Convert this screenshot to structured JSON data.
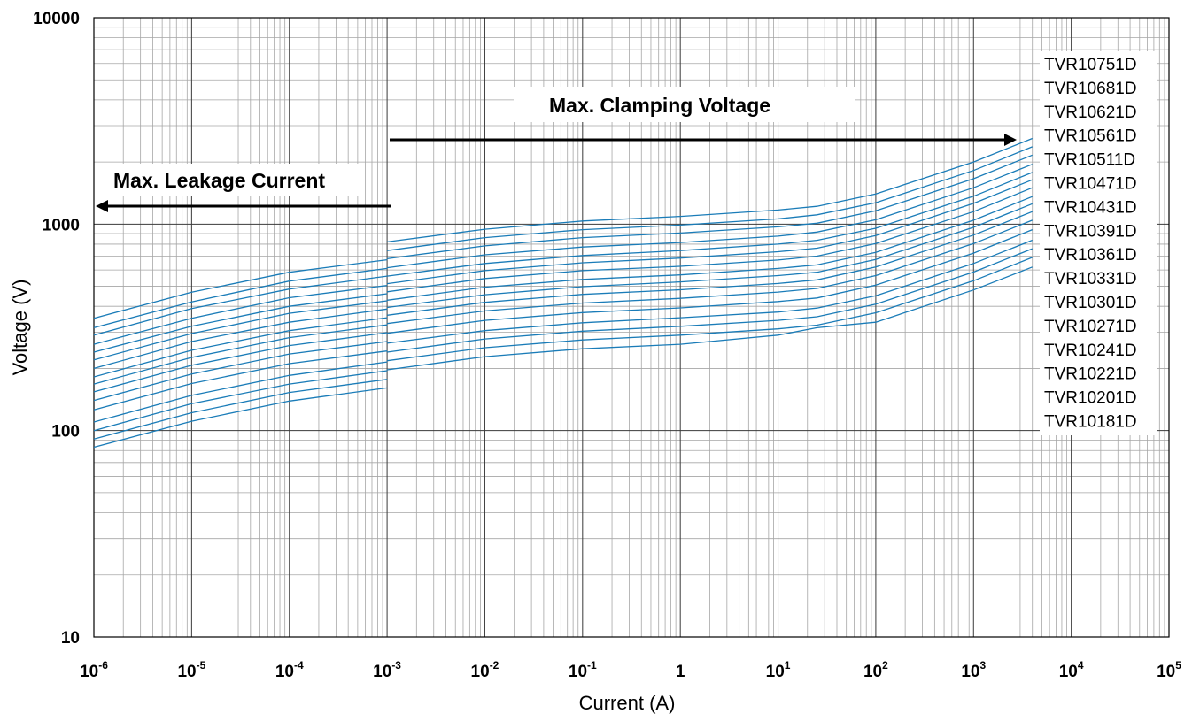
{
  "chart_data": {
    "type": "line",
    "title": "",
    "xlabel": "Current (A)",
    "ylabel": "Voltage (V)",
    "xscale": "log",
    "yscale": "log",
    "xlim": [
      1e-06,
      100000
    ],
    "ylim": [
      10,
      10000
    ],
    "grid": true,
    "x_tick_labels": [
      {
        "base": "10",
        "exp": "-6"
      },
      {
        "base": "10",
        "exp": "-5"
      },
      {
        "base": "10",
        "exp": "-4"
      },
      {
        "base": "10",
        "exp": "-3"
      },
      {
        "base": "10",
        "exp": "-2"
      },
      {
        "base": "10",
        "exp": "-1"
      },
      {
        "base": "1",
        "exp": ""
      },
      {
        "base": "10",
        "exp": "1"
      },
      {
        "base": "10",
        "exp": "2"
      },
      {
        "base": "10",
        "exp": "3"
      },
      {
        "base": "10",
        "exp": "4"
      },
      {
        "base": "10",
        "exp": "5"
      }
    ],
    "y_tick_labels": [
      "10",
      "100",
      "1000",
      "10000"
    ],
    "annotations": {
      "clamping": "Max.  Clamping  Voltage",
      "leakage": "Max. Leakage Current"
    },
    "line_color": "#1a7cb8",
    "legend_position": "right",
    "series": [
      {
        "name": "TVR10751D",
        "leakage": [
          [
            1e-06,
            350
          ],
          [
            1e-05,
            468
          ],
          [
            0.0001,
            585
          ],
          [
            0.001,
            672
          ]
        ],
        "clamping": [
          [
            0.001,
            820
          ],
          [
            0.01,
            945
          ],
          [
            0.1,
            1035
          ],
          [
            1,
            1090
          ],
          [
            10,
            1170
          ],
          [
            25,
            1220
          ],
          [
            100,
            1400
          ],
          [
            1000,
            2000
          ],
          [
            4000,
            2600
          ]
        ]
      },
      {
        "name": "TVR10681D",
        "leakage": [
          [
            1e-06,
            315
          ],
          [
            1e-05,
            420
          ],
          [
            0.0001,
            530
          ],
          [
            0.001,
            610
          ]
        ],
        "clamping": [
          [
            0.001,
            745
          ],
          [
            0.01,
            860
          ],
          [
            0.1,
            940
          ],
          [
            1,
            990
          ],
          [
            10,
            1060
          ],
          [
            25,
            1110
          ],
          [
            100,
            1270
          ],
          [
            1000,
            1820
          ],
          [
            4000,
            2370
          ]
        ]
      },
      {
        "name": "TVR10621D",
        "leakage": [
          [
            1e-06,
            290
          ],
          [
            1e-05,
            390
          ],
          [
            0.0001,
            485
          ],
          [
            0.001,
            560
          ]
        ],
        "clamping": [
          [
            0.001,
            680
          ],
          [
            0.01,
            785
          ],
          [
            0.1,
            860
          ],
          [
            1,
            905
          ],
          [
            10,
            970
          ],
          [
            25,
            1010
          ],
          [
            100,
            1160
          ],
          [
            1000,
            1660
          ],
          [
            4000,
            2160
          ]
        ]
      },
      {
        "name": "TVR10561D",
        "leakage": [
          [
            1e-06,
            262
          ],
          [
            1e-05,
            350
          ],
          [
            0.0001,
            440
          ],
          [
            0.001,
            505
          ]
        ],
        "clamping": [
          [
            0.001,
            615
          ],
          [
            0.01,
            710
          ],
          [
            0.1,
            775
          ],
          [
            1,
            815
          ],
          [
            10,
            875
          ],
          [
            25,
            915
          ],
          [
            100,
            1050
          ],
          [
            1000,
            1500
          ],
          [
            4000,
            1950
          ]
        ]
      },
      {
        "name": "TVR10511D",
        "leakage": [
          [
            1e-06,
            240
          ],
          [
            1e-05,
            320
          ],
          [
            0.0001,
            400
          ],
          [
            0.001,
            460
          ]
        ],
        "clamping": [
          [
            0.001,
            560
          ],
          [
            0.01,
            645
          ],
          [
            0.1,
            705
          ],
          [
            1,
            745
          ],
          [
            10,
            800
          ],
          [
            25,
            835
          ],
          [
            100,
            955
          ],
          [
            1000,
            1365
          ],
          [
            4000,
            1780
          ]
        ]
      },
      {
        "name": "TVR10471D",
        "leakage": [
          [
            1e-06,
            220
          ],
          [
            1e-05,
            295
          ],
          [
            0.0001,
            370
          ],
          [
            0.001,
            425
          ]
        ],
        "clamping": [
          [
            0.001,
            515
          ],
          [
            0.01,
            595
          ],
          [
            0.1,
            650
          ],
          [
            1,
            685
          ],
          [
            10,
            735
          ],
          [
            25,
            765
          ],
          [
            100,
            880
          ],
          [
            1000,
            1260
          ],
          [
            4000,
            1640
          ]
        ]
      },
      {
        "name": "TVR10431D",
        "leakage": [
          [
            1e-06,
            200
          ],
          [
            1e-05,
            270
          ],
          [
            0.0001,
            335
          ],
          [
            0.001,
            388
          ]
        ],
        "clamping": [
          [
            0.001,
            470
          ],
          [
            0.01,
            545
          ],
          [
            0.1,
            595
          ],
          [
            1,
            625
          ],
          [
            10,
            670
          ],
          [
            25,
            700
          ],
          [
            100,
            805
          ],
          [
            1000,
            1150
          ],
          [
            4000,
            1500
          ]
        ]
      },
      {
        "name": "TVR10391D",
        "leakage": [
          [
            1e-06,
            182
          ],
          [
            1e-05,
            245
          ],
          [
            0.0001,
            305
          ],
          [
            0.001,
            352
          ]
        ],
        "clamping": [
          [
            0.001,
            428
          ],
          [
            0.01,
            495
          ],
          [
            0.1,
            540
          ],
          [
            1,
            568
          ],
          [
            10,
            610
          ],
          [
            25,
            635
          ],
          [
            100,
            730
          ],
          [
            1000,
            1045
          ],
          [
            4000,
            1360
          ]
        ]
      },
      {
        "name": "TVR10361D",
        "leakage": [
          [
            1e-06,
            168
          ],
          [
            1e-05,
            226
          ],
          [
            0.0001,
            282
          ],
          [
            0.001,
            325
          ]
        ],
        "clamping": [
          [
            0.001,
            395
          ],
          [
            0.01,
            455
          ],
          [
            0.1,
            498
          ],
          [
            1,
            525
          ],
          [
            10,
            563
          ],
          [
            25,
            585
          ],
          [
            100,
            675
          ],
          [
            1000,
            965
          ],
          [
            4000,
            1255
          ]
        ]
      },
      {
        "name": "TVR10331D",
        "leakage": [
          [
            1e-06,
            154
          ],
          [
            1e-05,
            207
          ],
          [
            0.0001,
            258
          ],
          [
            0.001,
            298
          ]
        ],
        "clamping": [
          [
            0.001,
            362
          ],
          [
            0.01,
            418
          ],
          [
            0.1,
            457
          ],
          [
            1,
            481
          ],
          [
            10,
            516
          ],
          [
            25,
            537
          ],
          [
            100,
            620
          ],
          [
            1000,
            885
          ],
          [
            4000,
            1150
          ]
        ]
      },
      {
        "name": "TVR10301D",
        "leakage": [
          [
            1e-06,
            140
          ],
          [
            1e-05,
            188
          ],
          [
            0.0001,
            235
          ],
          [
            0.001,
            270
          ]
        ],
        "clamping": [
          [
            0.001,
            330
          ],
          [
            0.01,
            380
          ],
          [
            0.1,
            415
          ],
          [
            1,
            437
          ],
          [
            10,
            469
          ],
          [
            25,
            488
          ],
          [
            100,
            563
          ],
          [
            1000,
            805
          ],
          [
            4000,
            1045
          ]
        ]
      },
      {
        "name": "TVR10271D",
        "leakage": [
          [
            1e-06,
            126
          ],
          [
            1e-05,
            169
          ],
          [
            0.0001,
            211
          ],
          [
            0.001,
            243
          ]
        ],
        "clamping": [
          [
            0.001,
            296
          ],
          [
            0.01,
            342
          ],
          [
            0.1,
            373
          ],
          [
            1,
            393
          ],
          [
            10,
            422
          ],
          [
            25,
            439
          ],
          [
            100,
            507
          ],
          [
            1000,
            724
          ],
          [
            4000,
            940
          ]
        ]
      },
      {
        "name": "TVR10241D",
        "leakage": [
          [
            1e-06,
            110
          ],
          [
            1e-05,
            148
          ],
          [
            0.0001,
            185
          ],
          [
            0.001,
            215
          ]
        ],
        "clamping": [
          [
            0.001,
            265
          ],
          [
            0.01,
            305
          ],
          [
            0.1,
            333
          ],
          [
            1,
            352
          ],
          [
            10,
            375
          ],
          [
            25,
            392
          ],
          [
            100,
            450
          ],
          [
            1000,
            645
          ],
          [
            4000,
            836
          ]
        ]
      },
      {
        "name": "TVR10221D",
        "leakage": [
          [
            1e-06,
            100
          ],
          [
            1e-05,
            135
          ],
          [
            0.0001,
            168
          ],
          [
            0.001,
            195
          ]
        ],
        "clamping": [
          [
            0.001,
            240
          ],
          [
            0.01,
            278
          ],
          [
            0.1,
            303
          ],
          [
            1,
            320
          ],
          [
            10,
            342
          ],
          [
            25,
            356
          ],
          [
            100,
            410
          ],
          [
            1000,
            586
          ],
          [
            4000,
            760
          ]
        ]
      },
      {
        "name": "TVR10201D",
        "leakage": [
          [
            1e-06,
            91
          ],
          [
            1e-05,
            122
          ],
          [
            0.0001,
            153
          ],
          [
            0.001,
            177
          ]
        ],
        "clamping": [
          [
            0.001,
            218
          ],
          [
            0.01,
            252
          ],
          [
            0.1,
            275
          ],
          [
            1,
            290
          ],
          [
            10,
            311
          ],
          [
            25,
            324
          ],
          [
            100,
            372
          ],
          [
            1000,
            532
          ],
          [
            4000,
            690
          ]
        ]
      },
      {
        "name": "TVR10181D",
        "leakage": [
          [
            1e-06,
            83
          ],
          [
            1e-05,
            111
          ],
          [
            0.0001,
            139
          ],
          [
            0.001,
            161
          ]
        ],
        "clamping": [
          [
            0.001,
            197
          ],
          [
            0.01,
            228
          ],
          [
            0.1,
            249
          ],
          [
            1,
            262
          ],
          [
            10,
            290
          ],
          [
            25,
            315
          ],
          [
            100,
            335
          ],
          [
            1000,
            480
          ],
          [
            4000,
            620
          ]
        ]
      }
    ]
  }
}
